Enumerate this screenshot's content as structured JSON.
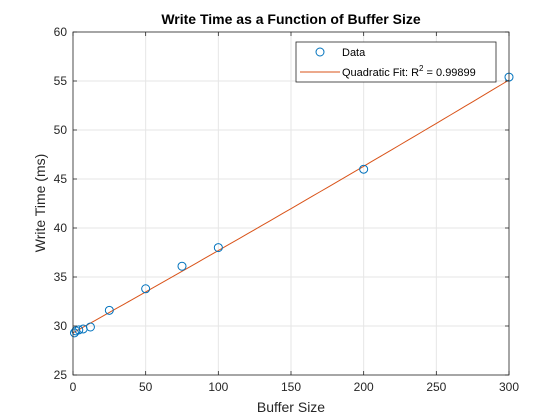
{
  "chart_data": {
    "type": "scatter",
    "title": "Write Time as a Function of Buffer Size",
    "xlabel": "Buffer Size",
    "ylabel": "Write Time (ms)",
    "xlim": [
      0,
      300
    ],
    "ylim": [
      25,
      60
    ],
    "xticks": [
      0,
      50,
      100,
      150,
      200,
      250,
      300
    ],
    "yticks": [
      25,
      30,
      35,
      40,
      45,
      50,
      55,
      60
    ],
    "xtick_labels": [
      "0",
      "50",
      "100",
      "150",
      "200",
      "250",
      "300"
    ],
    "ytick_labels": [
      "25",
      "30",
      "35",
      "40",
      "45",
      "50",
      "55",
      "60"
    ],
    "grid": true,
    "legend_position": "top-right",
    "series": [
      {
        "name": "Data",
        "kind": "scatter",
        "marker": "open-circle",
        "color": "#0072BD",
        "x": [
          1,
          2,
          4,
          7,
          12,
          25,
          50,
          75,
          100,
          200,
          300
        ],
        "y": [
          29.3,
          29.5,
          29.6,
          29.7,
          29.9,
          31.6,
          33.8,
          36.1,
          38.0,
          46.0,
          55.4
        ]
      },
      {
        "name_prefix": "Quadratic Fit: R",
        "name_sup": "2",
        "name_suffix": " = 0.99899",
        "kind": "line",
        "color": "#D95319",
        "x": [
          0,
          300
        ],
        "y": [
          29.3,
          55.1
        ],
        "quadratic": {
          "a": 1e-05,
          "b": 0.083,
          "c": 29.3
        }
      }
    ]
  }
}
